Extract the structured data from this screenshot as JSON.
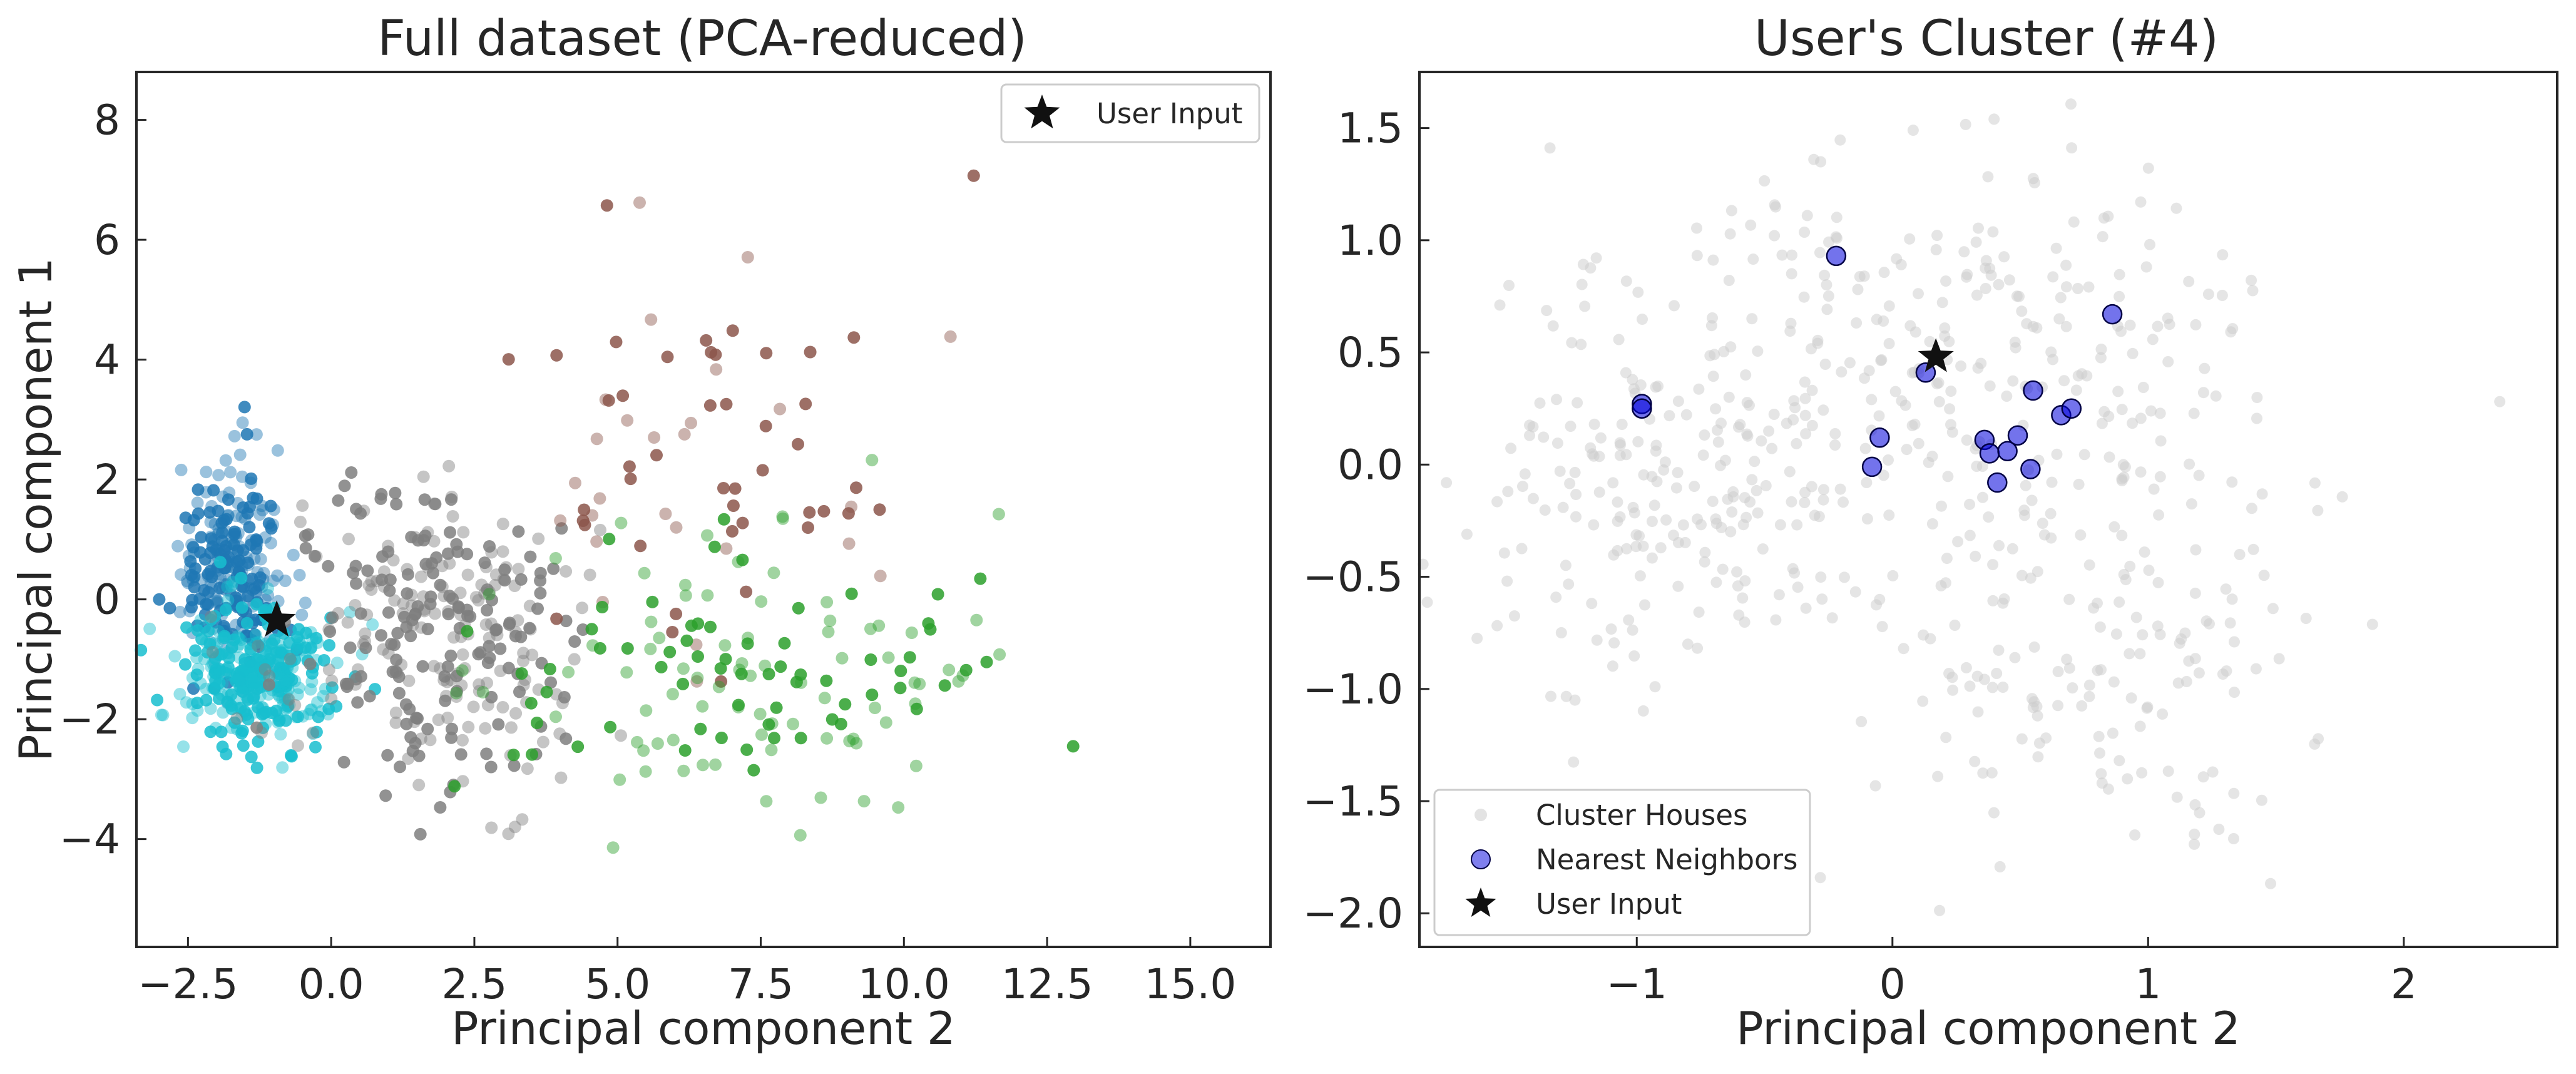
{
  "chart_data": [
    {
      "type": "scatter",
      "title": "Full dataset (PCA-reduced)",
      "xlabel": "Principal component 2",
      "ylabel": "Principal component 1",
      "xlim": [
        -3.4,
        16.4
      ],
      "ylim": [
        -5.8,
        8.8
      ],
      "xticks": [
        -2.5,
        0.0,
        2.5,
        5.0,
        7.5,
        10.0,
        12.5,
        15.0
      ],
      "xtick_labels": [
        "−2.5",
        "0.0",
        "2.5",
        "5.0",
        "7.5",
        "10.0",
        "12.5",
        "15.0"
      ],
      "yticks": [
        -4,
        -2,
        0,
        2,
        4,
        6,
        8
      ],
      "ytick_labels": [
        "−4",
        "−2",
        "0",
        "2",
        "4",
        "6",
        "8"
      ],
      "grid": false,
      "legend": {
        "position": "top-right",
        "entries": [
          "User Input"
        ]
      },
      "clusters": [
        {
          "color": "#1f77b4",
          "center": [
            -1.7,
            0.6
          ],
          "spread": [
            0.45,
            0.9
          ],
          "count": 260
        },
        {
          "color": "#17becf",
          "center": [
            -1.3,
            -1.3
          ],
          "spread": [
            0.65,
            0.55
          ],
          "count": 320
        },
        {
          "color": "#7f7f7f",
          "center": [
            1.8,
            -0.5
          ],
          "spread": [
            1.4,
            1.3
          ],
          "count": 320
        },
        {
          "color": "#8c564b",
          "center": [
            6.5,
            2.5
          ],
          "spread": [
            1.9,
            1.9
          ],
          "count": 70
        },
        {
          "color": "#2ca02c",
          "center": [
            7.5,
            -1.2
          ],
          "spread": [
            2.3,
            1.1
          ],
          "count": 150
        }
      ],
      "highlighted_points": [
        {
          "name": "User Input",
          "x": -0.95,
          "y": -0.35,
          "marker": "star",
          "color": "#111111"
        }
      ]
    },
    {
      "type": "scatter",
      "title": "User's Cluster (#4)",
      "xlabel": "Principal component 2",
      "ylabel": "",
      "xlim": [
        -1.85,
        2.6
      ],
      "ylim": [
        -2.15,
        1.75
      ],
      "xticks": [
        -1,
        0,
        1,
        2
      ],
      "xtick_labels": [
        "−1",
        "0",
        "1",
        "2"
      ],
      "yticks": [
        -2.0,
        -1.5,
        -1.0,
        -0.5,
        0.0,
        0.5,
        1.0,
        1.5
      ],
      "ytick_labels": [
        "−2.0",
        "−1.5",
        "−1.0",
        "−0.5",
        "0.0",
        "0.5",
        "1.0",
        "1.5"
      ],
      "grid": false,
      "legend": {
        "position": "bottom-left",
        "entries": [
          "Cluster Houses",
          "Nearest Neighbors",
          "User Input"
        ]
      },
      "series": [
        {
          "name": "Cluster Houses",
          "color": "#cccccc",
          "marker": "circle",
          "clusters": [
            {
              "center": [
                -0.9,
                -0.05
              ],
              "spread": [
                0.45,
                0.45
              ],
              "count": 220
            },
            {
              "center": [
                0.3,
                0.6
              ],
              "spread": [
                0.55,
                0.4
              ],
              "count": 200
            },
            {
              "center": [
                0.7,
                -0.5
              ],
              "spread": [
                0.5,
                0.55
              ],
              "count": 160
            },
            {
              "center": [
                0.9,
                -1.2
              ],
              "spread": [
                0.4,
                0.35
              ],
              "count": 50
            }
          ]
        },
        {
          "name": "Nearest Neighbors",
          "color": "#0000dd",
          "marker": "circle",
          "points": [
            [
              -0.98,
              0.27
            ],
            [
              -0.98,
              0.25
            ],
            [
              -0.22,
              0.93
            ],
            [
              0.13,
              0.41
            ],
            [
              0.86,
              0.67
            ],
            [
              -0.05,
              0.12
            ],
            [
              -0.08,
              -0.01
            ],
            [
              0.36,
              0.11
            ],
            [
              0.38,
              0.05
            ],
            [
              0.41,
              -0.08
            ],
            [
              0.45,
              0.06
            ],
            [
              0.49,
              0.13
            ],
            [
              0.54,
              -0.02
            ],
            [
              0.55,
              0.33
            ],
            [
              0.66,
              0.22
            ],
            [
              0.7,
              0.25
            ]
          ]
        },
        {
          "name": "User Input",
          "color": "#111111",
          "marker": "star",
          "points": [
            [
              0.17,
              0.48
            ]
          ]
        }
      ]
    }
  ]
}
